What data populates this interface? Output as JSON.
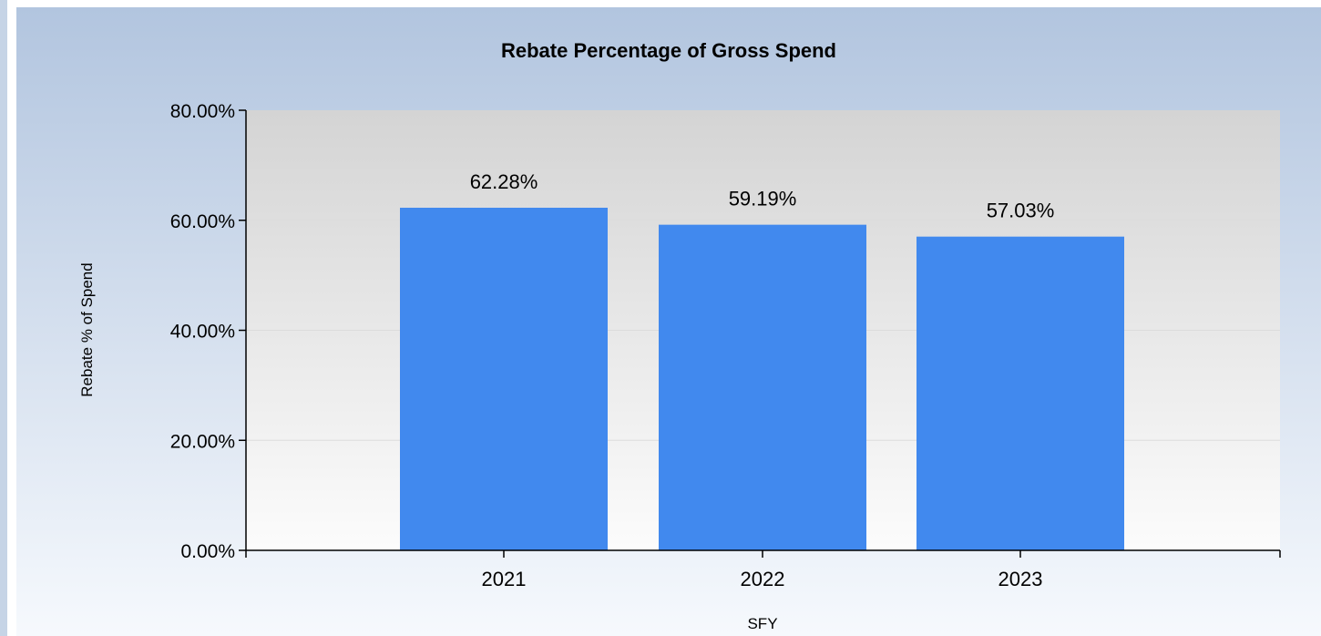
{
  "chart_data": {
    "type": "bar",
    "title": "Rebate Percentage of Gross Spend",
    "xlabel": "SFY",
    "ylabel": "Rebate % of Spend",
    "categories": [
      "2021",
      "2022",
      "2023"
    ],
    "values": [
      62.28,
      59.19,
      57.03
    ],
    "data_labels": [
      "62.28%",
      "59.19%",
      "57.03%"
    ],
    "ylim": [
      0,
      80
    ],
    "yticks": [
      0,
      20,
      40,
      60,
      80
    ],
    "ytick_labels": [
      "0.00%",
      "20.00%",
      "40.00%",
      "60.00%",
      "80.00%"
    ],
    "grid": true,
    "legend": "none",
    "colors": {
      "bar": "#4189ee",
      "panel_top": "#b2c5df",
      "panel_bottom": "#f6f9fd",
      "plot_top": "#d4d4d4",
      "plot_bottom": "#fcfcfc",
      "axis": "#000000",
      "gridline": "#dcdcdc"
    }
  }
}
